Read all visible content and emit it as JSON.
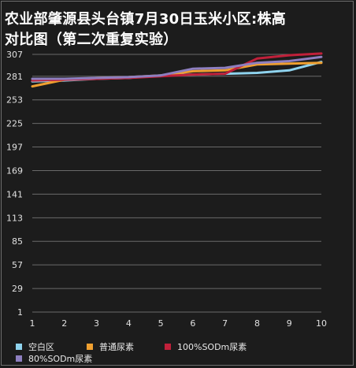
{
  "chart_data": {
    "type": "line",
    "title_line1": "农业部肇源县头台镇7月30日玉米小区:株高",
    "title_line2": "对比图（第二次重复实验）",
    "x": [
      1,
      2,
      3,
      4,
      5,
      6,
      7,
      8,
      9,
      10
    ],
    "y_ticks": [
      1,
      29,
      57,
      85,
      113,
      141,
      169,
      197,
      225,
      253,
      281,
      307
    ],
    "ylim": [
      1,
      307
    ],
    "grid": true,
    "legend_position": "bottom",
    "series": [
      {
        "name": "空白区",
        "color": "#8fd3ee",
        "values": [
          275,
          276,
          278,
          279,
          282,
          283,
          284,
          285,
          288,
          298
        ]
      },
      {
        "name": "普通尿素",
        "color": "#f0a030",
        "values": [
          269,
          277,
          279,
          280,
          282,
          287,
          288,
          295,
          296,
          297
        ]
      },
      {
        "name": "100%SODm尿素",
        "color": "#c0203a",
        "values": [
          276,
          277,
          278,
          279,
          281,
          283,
          284,
          302,
          306,
          308
        ]
      },
      {
        "name": "80%SODm尿素",
        "color": "#8e7fc0",
        "values": [
          278,
          278,
          279,
          280,
          282,
          290,
          291,
          297,
          299,
          304
        ]
      }
    ]
  }
}
